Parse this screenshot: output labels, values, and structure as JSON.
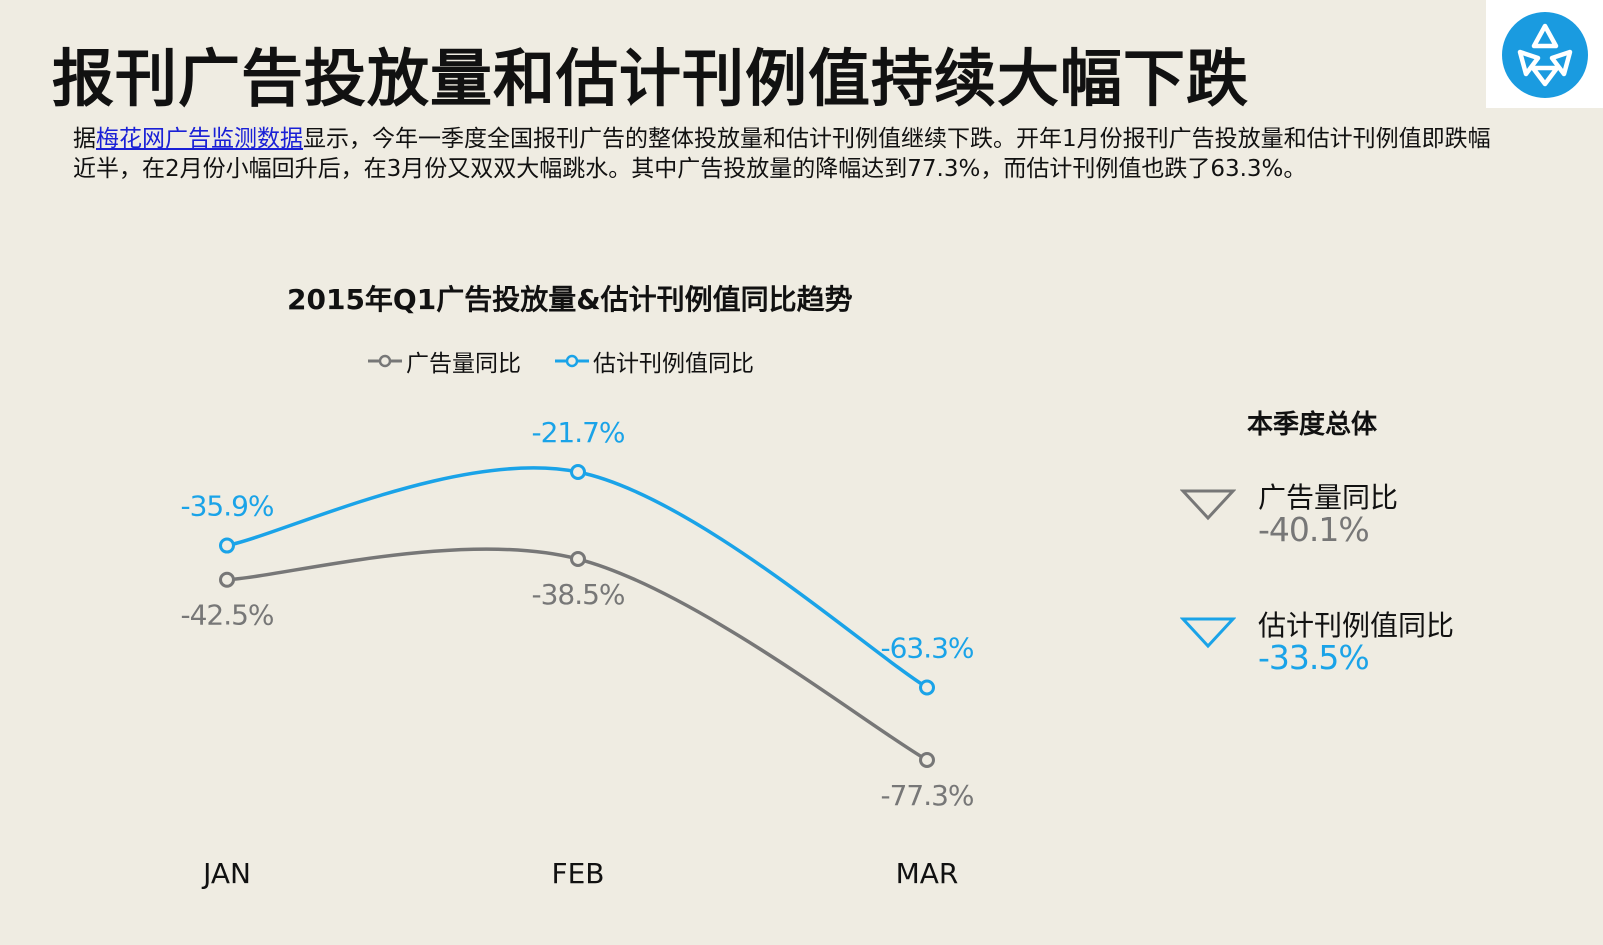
{
  "page_title": "报刊广告投放量和估计刊例值持续大幅下跌",
  "intro": {
    "prefix": "据",
    "link_text": "梅花网广告监测数据",
    "body": "显示，今年一季度全国报刊广告的整体投放量和估计刊例值继续下跌。开年1月份报刊广告投放量和估计刊例值即跌幅近半，在2月份小幅回升后，在3月份又双双大幅跳水。其中广告投放量的降幅达到77.3%，而估计刊例值也跌了63.3%。"
  },
  "logo": {
    "icon": "meihua-logo-icon",
    "color": "#1a9be0"
  },
  "chart_data": {
    "type": "line",
    "title": "2015年Q1广告投放量&估计刊例值同比趋势",
    "categories": [
      "JAN",
      "FEB",
      "MAR"
    ],
    "ylim": [
      -85,
      -15
    ],
    "xlabel": "",
    "ylabel": "",
    "grid": false,
    "legend_position": "top",
    "series": [
      {
        "name": "广告量同比",
        "values": [
          -42.5,
          -38.5,
          -77.3
        ],
        "labels": [
          "-42.5%",
          "-38.5%",
          "-77.3%"
        ],
        "label_position": "below",
        "color": "#777777"
      },
      {
        "name": "估计刊例值同比",
        "values": [
          -35.9,
          -21.7,
          -63.3
        ],
        "labels": [
          "-35.9%",
          "-21.7%",
          "-63.3%"
        ],
        "label_position": "above",
        "color": "#1aa3e8"
      }
    ]
  },
  "summary": {
    "title": "本季度总体",
    "items": [
      {
        "name": "广告量同比",
        "value": "-40.1%",
        "color": "#777777",
        "icon": "down-triangle-icon"
      },
      {
        "name": "估计刊例值同比",
        "value": "-33.5%",
        "color": "#1aa3e8",
        "icon": "down-triangle-icon"
      }
    ]
  }
}
